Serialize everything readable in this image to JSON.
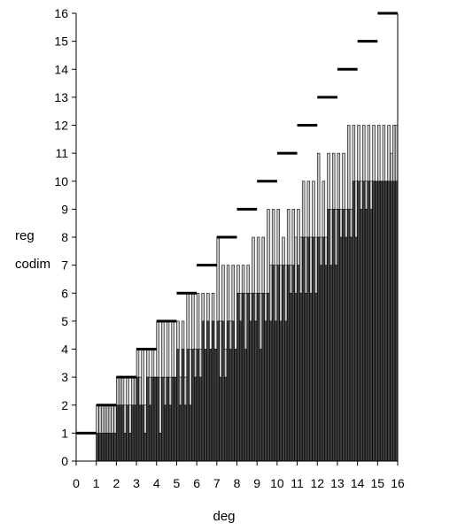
{
  "chart_data": {
    "type": "bar",
    "title": "",
    "xlabel": "deg",
    "ylabels": [
      "reg",
      "codim"
    ],
    "xlim": [
      0,
      16
    ],
    "ylim": [
      0,
      16
    ],
    "xticks": [
      "0",
      "1",
      "2",
      "3",
      "4",
      "5",
      "6",
      "7",
      "8",
      "9",
      "10",
      "11",
      "12",
      "13",
      "14",
      "15",
      "16"
    ],
    "yticks": [
      "0",
      "1",
      "2",
      "3",
      "4",
      "5",
      "6",
      "7",
      "8",
      "9",
      "10",
      "11",
      "12",
      "13",
      "14",
      "15",
      "16"
    ],
    "grid": false,
    "legend": "none",
    "bar_width": 0.125,
    "bars_x_start": 1,
    "colors": {
      "codim_fill": "#3f3f3f",
      "reg_fill": "#c8c8c8",
      "bar_stroke": "#000000",
      "step_line": "#000000"
    },
    "series": [
      {
        "role": "codim",
        "values": [
          1,
          1,
          1,
          1,
          1,
          1,
          1,
          1,
          2,
          2,
          2,
          1,
          2,
          1,
          2,
          2,
          3,
          2,
          2,
          1,
          3,
          2,
          3,
          3,
          3,
          1,
          3,
          2,
          3,
          2,
          3,
          3,
          4,
          2,
          4,
          2,
          4,
          2,
          4,
          3,
          4,
          3,
          5,
          4,
          5,
          4,
          5,
          4,
          5,
          3,
          5,
          3,
          5,
          4,
          5,
          4,
          6,
          5,
          6,
          4,
          6,
          5,
          6,
          5,
          6,
          4,
          6,
          5,
          6,
          5,
          7,
          5,
          7,
          5,
          7,
          5,
          7,
          6,
          7,
          6,
          7,
          6,
          8,
          6,
          8,
          6,
          8,
          6,
          8,
          7,
          8,
          7,
          9,
          7,
          9,
          7,
          9,
          8,
          9,
          8,
          9,
          8,
          10,
          8,
          10,
          9,
          10,
          9,
          10,
          9,
          10,
          10,
          10,
          10,
          10,
          10,
          10,
          10,
          10,
          10
        ]
      },
      {
        "role": "reg",
        "values": [
          2,
          2,
          2,
          2,
          2,
          2,
          2,
          2,
          3,
          3,
          3,
          2,
          3,
          2,
          3,
          3,
          4,
          3,
          4,
          2,
          4,
          3,
          4,
          3,
          5,
          3,
          5,
          3,
          5,
          3,
          5,
          3,
          5,
          3,
          5,
          3,
          6,
          4,
          6,
          4,
          6,
          4,
          6,
          4,
          6,
          4,
          6,
          4,
          8,
          5,
          7,
          4,
          7,
          5,
          7,
          4,
          7,
          6,
          7,
          6,
          7,
          6,
          8,
          6,
          8,
          6,
          8,
          6,
          9,
          7,
          9,
          7,
          9,
          7,
          8,
          7,
          9,
          7,
          9,
          8,
          9,
          8,
          10,
          8,
          10,
          8,
          10,
          8,
          11,
          8,
          10,
          8,
          11,
          9,
          11,
          9,
          11,
          9,
          11,
          9,
          12,
          9,
          12,
          10,
          12,
          10,
          12,
          10,
          12,
          10,
          12,
          10,
          12,
          10,
          12,
          10,
          12,
          11,
          12,
          12
        ]
      }
    ],
    "step_levels": {
      "x": [
        0,
        1,
        2,
        3,
        4,
        5,
        6,
        7,
        8,
        9,
        10,
        11,
        12,
        13,
        14,
        15
      ],
      "values": [
        1,
        2,
        3,
        4,
        5,
        6,
        7,
        8,
        9,
        10,
        11,
        12,
        13,
        14,
        15,
        16
      ]
    }
  }
}
